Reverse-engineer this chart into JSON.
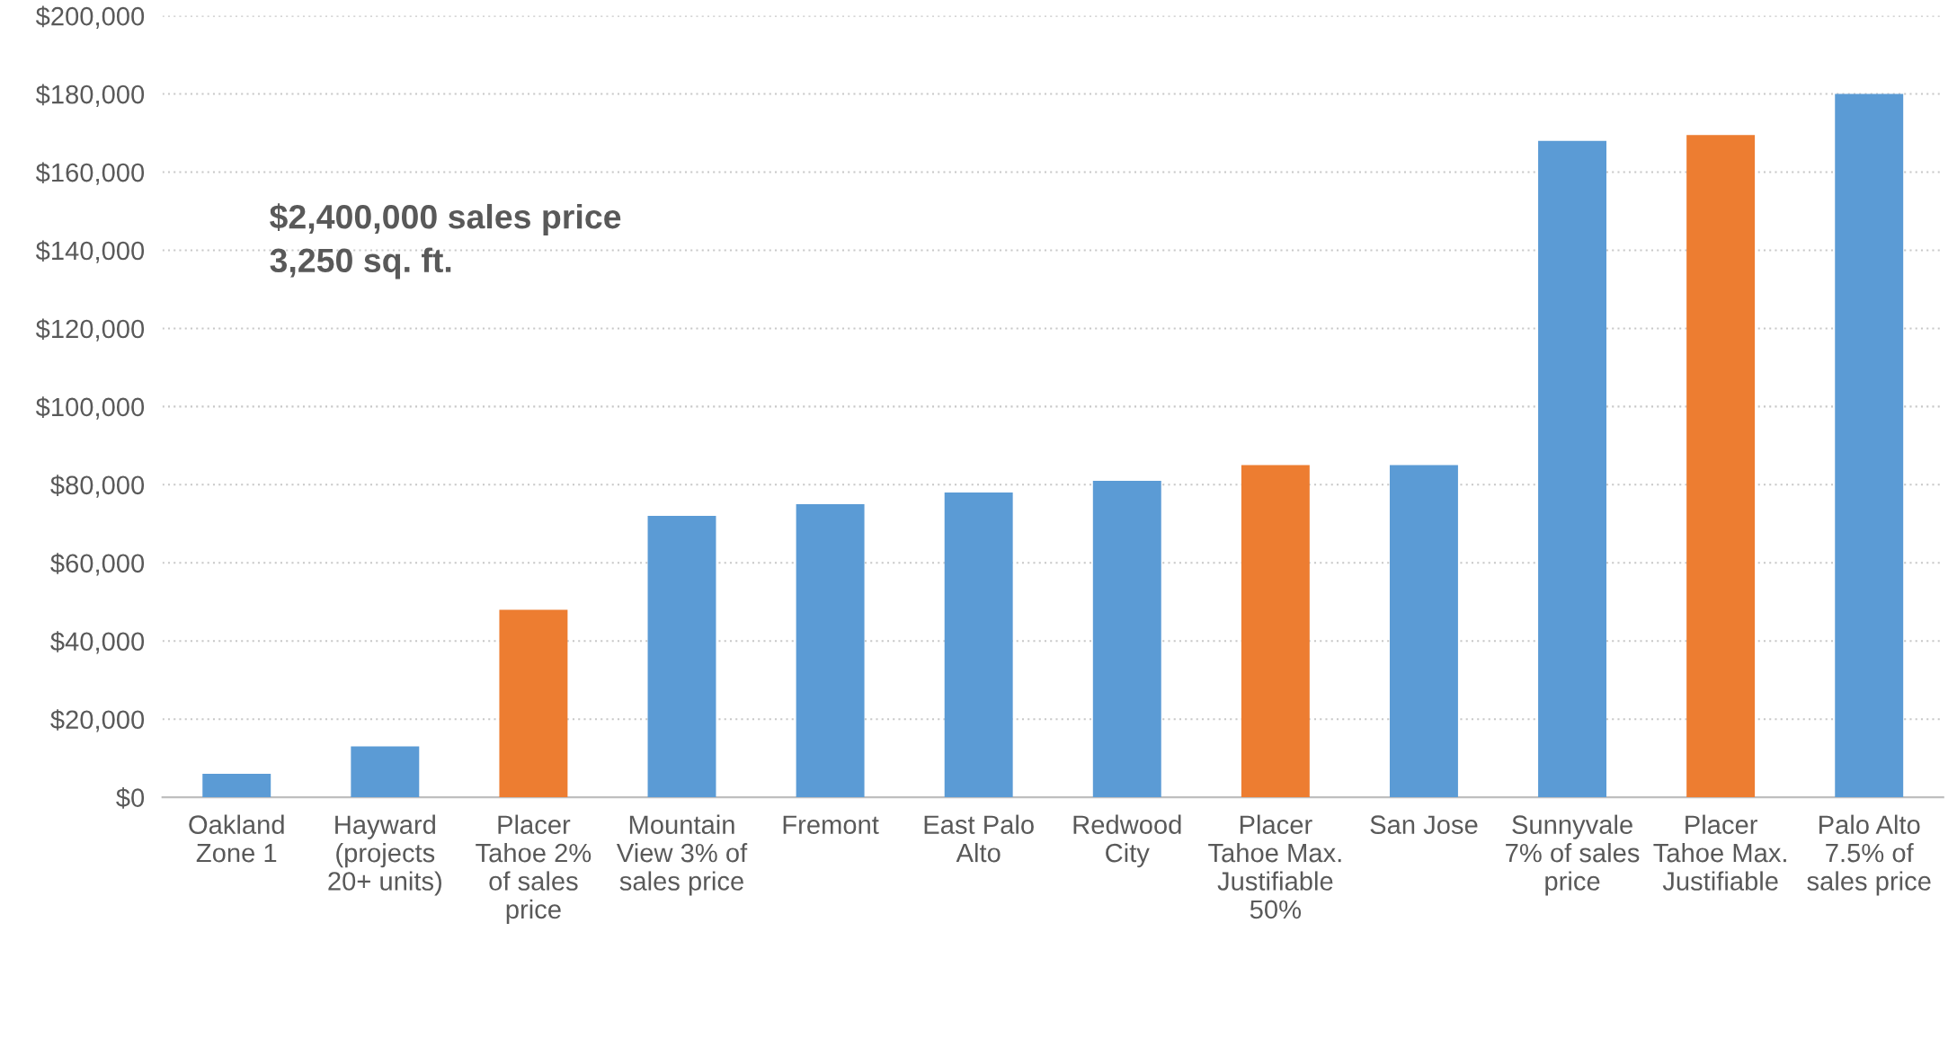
{
  "chart_data": {
    "type": "bar",
    "categories": [
      "Oakland\nZone 1",
      "Hayward\n(projects\n20+ units)",
      "Placer\nTahoe 2%\nof sales\nprice",
      "Mountain\nView 3% of\nsales price",
      "Fremont",
      "East Palo\nAlto",
      "Redwood\nCity",
      "Placer\nTahoe Max.\nJustifiable\n50%",
      "San Jose",
      "Sunnyvale\n7% of sales\nprice",
      "Placer\nTahoe Max.\nJustifiable",
      "Palo Alto\n7.5% of\nsales price"
    ],
    "values": [
      6000,
      13000,
      48000,
      72000,
      75000,
      78000,
      81000,
      85000,
      85000,
      168000,
      169500,
      180000
    ],
    "colors": [
      "#5b9bd5",
      "#5b9bd5",
      "#ed7d31",
      "#5b9bd5",
      "#5b9bd5",
      "#5b9bd5",
      "#5b9bd5",
      "#ed7d31",
      "#5b9bd5",
      "#5b9bd5",
      "#ed7d31",
      "#5b9bd5"
    ],
    "ylim": [
      0,
      200000
    ],
    "yticks": [
      {
        "value": 0,
        "label": "$0"
      },
      {
        "value": 20000,
        "label": "$20,000"
      },
      {
        "value": 40000,
        "label": "$40,000"
      },
      {
        "value": 60000,
        "label": "$60,000"
      },
      {
        "value": 80000,
        "label": "$80,000"
      },
      {
        "value": 100000,
        "label": "$100,000"
      },
      {
        "value": 120000,
        "label": "$120,000"
      },
      {
        "value": 140000,
        "label": "$140,000"
      },
      {
        "value": 160000,
        "label": "$160,000"
      },
      {
        "value": 180000,
        "label": "$180,000"
      },
      {
        "value": 200000,
        "label": "$200,000"
      }
    ],
    "grid": "y",
    "annotations": [
      "$2,400,000 sales price\n3,250 sq. ft."
    ]
  }
}
